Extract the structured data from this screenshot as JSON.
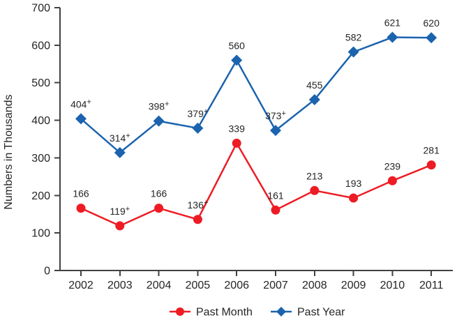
{
  "chart_data": {
    "type": "line",
    "title": "",
    "xlabel": "",
    "ylabel": "Numbers in Thousands",
    "categories": [
      "2002",
      "2003",
      "2004",
      "2005",
      "2006",
      "2007",
      "2008",
      "2009",
      "2010",
      "2011"
    ],
    "ylim": [
      0,
      700
    ],
    "yticks": [
      0,
      100,
      200,
      300,
      400,
      500,
      600,
      700
    ],
    "grid": false,
    "legend_position": "bottom-center",
    "series": [
      {
        "name": "Past Month",
        "marker": "circle",
        "color": "#ed1c24",
        "values": [
          166,
          119,
          166,
          136,
          339,
          161,
          213,
          193,
          239,
          281
        ],
        "point_labels": [
          "166",
          "119+",
          "166",
          "136+",
          "339",
          "161",
          "213",
          "193",
          "239",
          "281"
        ]
      },
      {
        "name": "Past Year",
        "marker": "diamond",
        "color": "#1b63ae",
        "values": [
          404,
          314,
          398,
          379,
          560,
          373,
          455,
          582,
          621,
          620
        ],
        "point_labels": [
          "404+",
          "314+",
          "398+",
          "379+",
          "560",
          "373+",
          "455",
          "582",
          "621",
          "620"
        ]
      }
    ]
  },
  "style_colors": {
    "axis": "#414042",
    "text": "#262524",
    "background": "#ffffff"
  }
}
